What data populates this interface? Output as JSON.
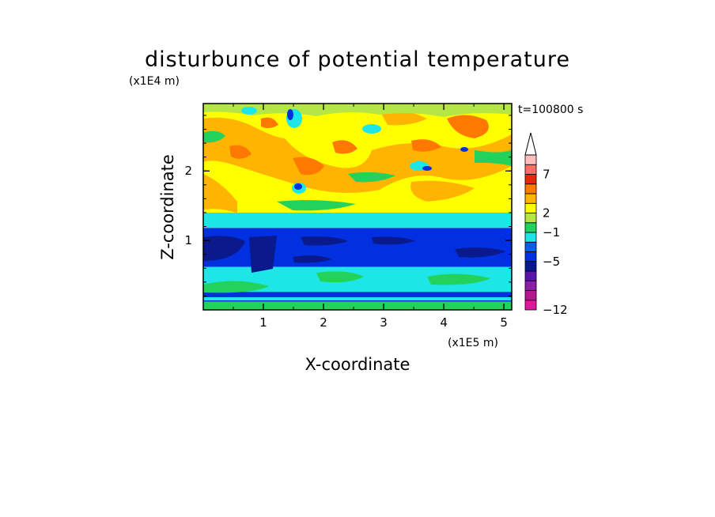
{
  "chart_data": {
    "type": "heatmap",
    "title": "disturbunce of potential temperature",
    "xlabel": "X-coordinate",
    "ylabel": "Z-coordinate",
    "x_unit": "(x1E5 m)",
    "y_unit": "(x1E4 m)",
    "time_label": "t=100800 s",
    "xlim": [
      0,
      5.13
    ],
    "ylim": [
      0,
      2.97
    ],
    "x_ticks": [
      "1",
      "2",
      "3",
      "4",
      "5"
    ],
    "x_tick_values": [
      1,
      2,
      3,
      4,
      5
    ],
    "y_ticks": [
      "1",
      "2"
    ],
    "y_tick_values": [
      1,
      2
    ],
    "colorbar": {
      "labels": [
        "−12",
        "−5",
        "−1",
        "2",
        "7"
      ],
      "label_levels": [
        0,
        5,
        8,
        10,
        14
      ],
      "extend": "max",
      "colors": [
        "#e0189e",
        "#b5188e",
        "#8e1ea6",
        "#5a14a8",
        "#0a1a8c",
        "#0030e0",
        "#0a5cf0",
        "#1ee6e6",
        "#22d25a",
        "#b4e646",
        "#ffff00",
        "#ffb400",
        "#ff7800",
        "#e6280a",
        "#ff6e64",
        "#ffbebe",
        "#ffffff"
      ]
    },
    "color_scale": {
      "strong_negative": "#0a1a8c",
      "negative": "#0030e0",
      "weak_negative": "#1ee6e6",
      "near_zero": "#22d25a",
      "weak_positive": "#ffff00",
      "positive": "#ffb400",
      "strong_positive": "#ff7800"
    },
    "vertical_bands": [
      {
        "z_range": [
          0,
          0.12
        ],
        "level": "near_zero"
      },
      {
        "z_range": [
          0.12,
          0.26
        ],
        "level": "negative"
      },
      {
        "z_range": [
          0.26,
          0.62
        ],
        "level": "weak_negative"
      },
      {
        "z_range": [
          0.62,
          1.18
        ],
        "level": "negative"
      },
      {
        "z_range": [
          1.18,
          1.4
        ],
        "level": "weak_negative"
      },
      {
        "z_range": [
          1.4,
          2.97
        ],
        "level": "weak_positive"
      }
    ]
  }
}
